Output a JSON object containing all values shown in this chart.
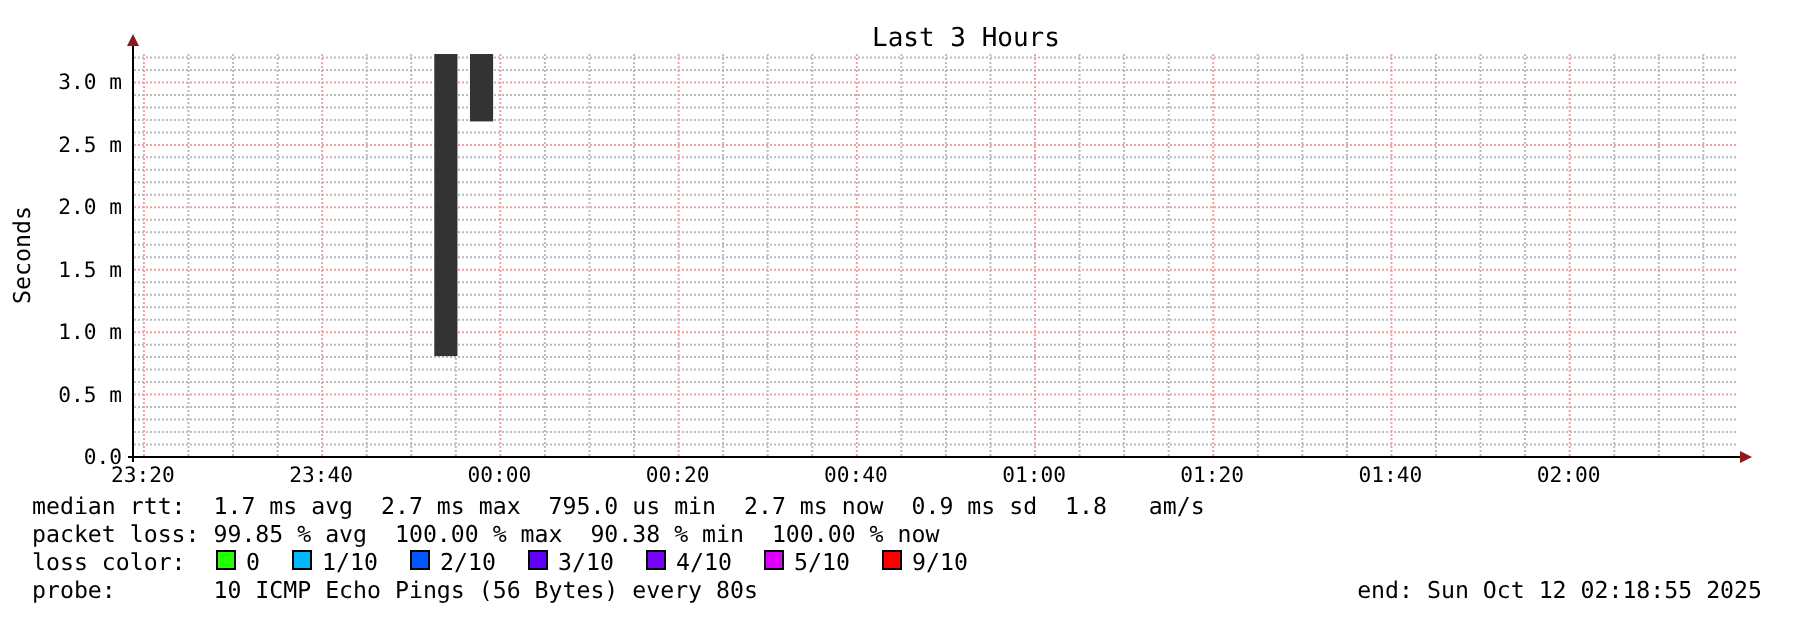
{
  "chart_data": {
    "type": "bar",
    "title": "Last 3 Hours",
    "ylabel": "Seconds",
    "x": [
      "2025-10-11T23:54",
      "2025-10-11T23:58"
    ],
    "series": [
      {
        "color": "#333333",
        "values": [
          2.42,
          0.54
        ],
        "base": [
          0.8,
          2.68
        ]
      },
      {
        "name": "0",
        "color": "#26ff00",
        "values": [
          null,
          null
        ]
      },
      {
        "name": "1/10",
        "color": "#00b8ff",
        "values": [
          null,
          null
        ]
      },
      {
        "name": "2/10",
        "color": "#0059ff",
        "values": [
          null,
          null
        ]
      },
      {
        "name": "3/10",
        "color": "#5e00ff",
        "values": [
          null,
          null
        ]
      },
      {
        "name": "4/10",
        "color": "#7e00ff",
        "values": [
          null,
          null
        ]
      },
      {
        "name": "5/10",
        "color": "#dd00ff",
        "values": [
          null,
          null
        ]
      },
      {
        "name": "9/10",
        "color": "#ff0000",
        "values": [
          null,
          null
        ]
      }
    ],
    "legend_title": "loss color:",
    "legend": "bottom",
    "xlim": [
      "2025-10-11T23:19",
      "2025-10-12T02:19"
    ],
    "xticks": [
      {
        "value": "2025-10-11T23:20",
        "label": "23:20"
      },
      {
        "value": "2025-10-11T23:40",
        "label": "23:40"
      },
      {
        "value": "2025-10-12T00:00",
        "label": "00:00"
      },
      {
        "value": "2025-10-12T00:20",
        "label": "00:20"
      },
      {
        "value": "2025-10-12T00:40",
        "label": "00:40"
      },
      {
        "value": "2025-10-12T01:00",
        "label": "01:00"
      },
      {
        "value": "2025-10-12T01:20",
        "label": "01:20"
      },
      {
        "value": "2025-10-12T01:40",
        "label": "01:40"
      },
      {
        "value": "2025-10-12T02:00",
        "label": "02:00"
      }
    ],
    "ylim": [
      0,
      3.22
    ],
    "yticks": [
      {
        "value": 0,
        "label": "0.0"
      },
      {
        "value": 0.5,
        "label": "0.5 m"
      },
      {
        "value": 1,
        "label": "1.0 m"
      },
      {
        "value": 1.5,
        "label": "1.5 m"
      },
      {
        "value": 2,
        "label": "2.0 m"
      },
      {
        "value": 2.5,
        "label": "2.5 m"
      },
      {
        "value": 3,
        "label": "3.0 m"
      }
    ],
    "grid": true,
    "annotations": [
      "median rtt:  1.7 ms avg  2.7 ms max  795.0 us min  2.7 ms now  0.9 ms sd  1.8   am/s",
      "packet loss: 99.85 % avg  100.00 % max  90.38 % min  100.00 % now",
      "probe:       10 ICMP Echo Pings (56 Bytes) every 80s",
      "end: Sun Oct 12 02:18:55 2025"
    ]
  }
}
